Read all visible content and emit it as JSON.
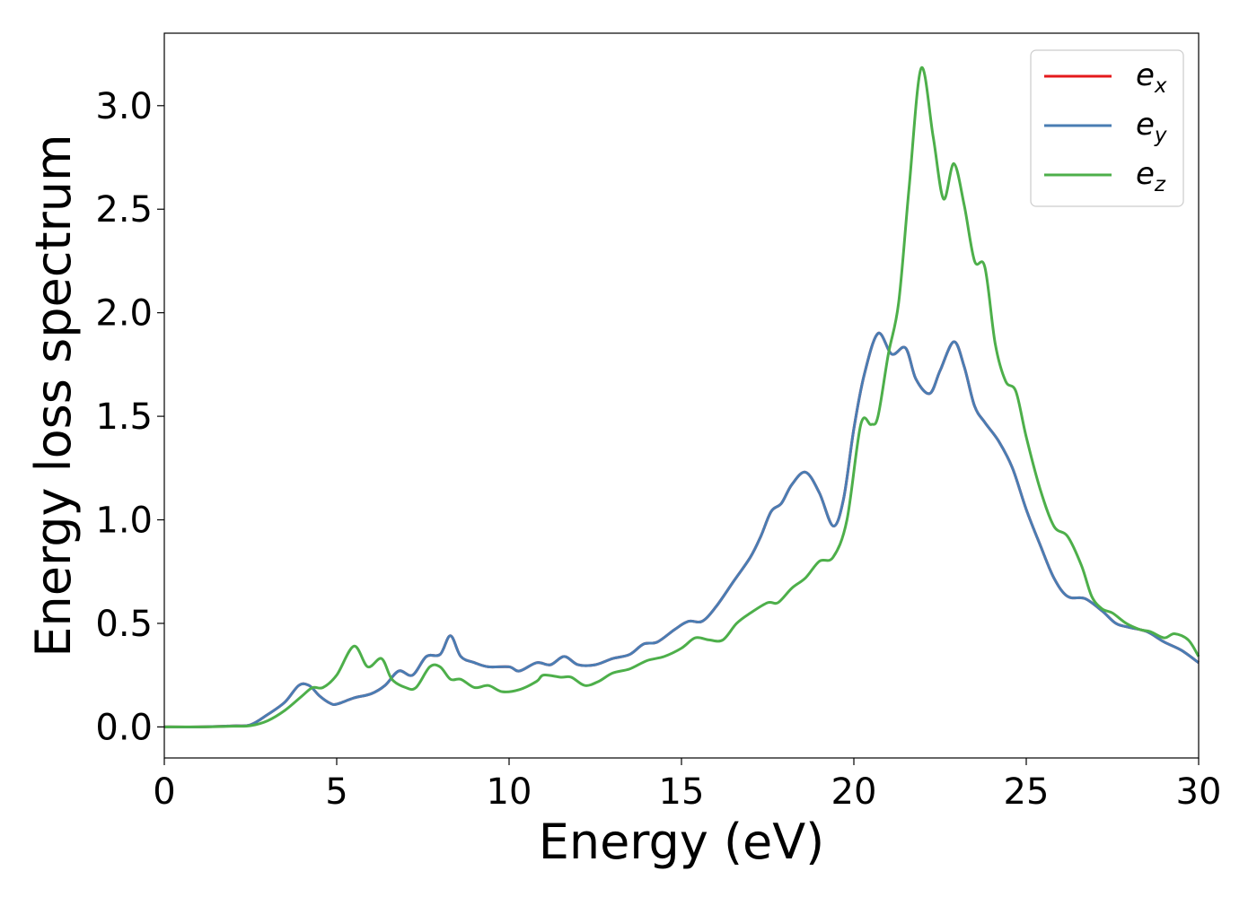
{
  "chart_data": {
    "type": "line",
    "xlabel": "Energy (eV)",
    "ylabel": "Energy loss spectrum",
    "xlim": [
      0,
      30
    ],
    "ylim": [
      -0.15,
      3.35
    ],
    "xticks": [
      "0",
      "5",
      "10",
      "15",
      "20",
      "25",
      "30"
    ],
    "yticks": [
      "0.0",
      "0.5",
      "1.0",
      "1.5",
      "2.0",
      "2.5",
      "3.0"
    ],
    "grid": false,
    "legend_position": "top-right",
    "series": [
      {
        "name": "e_x",
        "legend_base": "e",
        "legend_sub": "x",
        "color": "#e41a1c",
        "points": [
          [
            0,
            0
          ],
          [
            1,
            0
          ],
          [
            2,
            0.005
          ],
          [
            2.5,
            0.01
          ],
          [
            3,
            0.06
          ],
          [
            3.5,
            0.12
          ],
          [
            3.9,
            0.2
          ],
          [
            4.2,
            0.2
          ],
          [
            4.5,
            0.15
          ],
          [
            4.8,
            0.115
          ],
          [
            5,
            0.11
          ],
          [
            5.5,
            0.14
          ],
          [
            6,
            0.16
          ],
          [
            6.4,
            0.2
          ],
          [
            6.8,
            0.27
          ],
          [
            7.2,
            0.25
          ],
          [
            7.6,
            0.34
          ],
          [
            8,
            0.35
          ],
          [
            8.3,
            0.44
          ],
          [
            8.6,
            0.34
          ],
          [
            9,
            0.31
          ],
          [
            9.4,
            0.29
          ],
          [
            10,
            0.29
          ],
          [
            10.3,
            0.27
          ],
          [
            10.8,
            0.31
          ],
          [
            11.2,
            0.3
          ],
          [
            11.6,
            0.34
          ],
          [
            12,
            0.3
          ],
          [
            12.5,
            0.3
          ],
          [
            13,
            0.33
          ],
          [
            13.5,
            0.35
          ],
          [
            13.9,
            0.4
          ],
          [
            14.3,
            0.41
          ],
          [
            14.8,
            0.47
          ],
          [
            15.2,
            0.51
          ],
          [
            15.6,
            0.51
          ],
          [
            16,
            0.58
          ],
          [
            16.5,
            0.7
          ],
          [
            17,
            0.82
          ],
          [
            17.3,
            0.92
          ],
          [
            17.6,
            1.04
          ],
          [
            17.9,
            1.08
          ],
          [
            18.2,
            1.17
          ],
          [
            18.6,
            1.23
          ],
          [
            19,
            1.13
          ],
          [
            19.4,
            0.97
          ],
          [
            19.7,
            1.1
          ],
          [
            20,
            1.44
          ],
          [
            20.3,
            1.7
          ],
          [
            20.7,
            1.9
          ],
          [
            21.1,
            1.8
          ],
          [
            21.5,
            1.83
          ],
          [
            21.8,
            1.68
          ],
          [
            22.2,
            1.61
          ],
          [
            22.5,
            1.72
          ],
          [
            22.9,
            1.86
          ],
          [
            23.2,
            1.74
          ],
          [
            23.5,
            1.55
          ],
          [
            23.8,
            1.47
          ],
          [
            24.2,
            1.38
          ],
          [
            24.6,
            1.25
          ],
          [
            25,
            1.05
          ],
          [
            25.4,
            0.88
          ],
          [
            25.8,
            0.72
          ],
          [
            26.2,
            0.63
          ],
          [
            26.7,
            0.62
          ],
          [
            27.2,
            0.56
          ],
          [
            27.6,
            0.5
          ],
          [
            28,
            0.48
          ],
          [
            28.5,
            0.46
          ],
          [
            29,
            0.41
          ],
          [
            29.5,
            0.37
          ],
          [
            30,
            0.31
          ]
        ]
      },
      {
        "name": "e_y",
        "legend_base": "e",
        "legend_sub": "y",
        "color": "#4a7db3",
        "points": [
          [
            0,
            0
          ],
          [
            1,
            0
          ],
          [
            2,
            0.005
          ],
          [
            2.5,
            0.01
          ],
          [
            3,
            0.06
          ],
          [
            3.5,
            0.12
          ],
          [
            3.9,
            0.2
          ],
          [
            4.2,
            0.2
          ],
          [
            4.5,
            0.15
          ],
          [
            4.8,
            0.115
          ],
          [
            5,
            0.11
          ],
          [
            5.5,
            0.14
          ],
          [
            6,
            0.16
          ],
          [
            6.4,
            0.2
          ],
          [
            6.8,
            0.27
          ],
          [
            7.2,
            0.25
          ],
          [
            7.6,
            0.34
          ],
          [
            8,
            0.35
          ],
          [
            8.3,
            0.44
          ],
          [
            8.6,
            0.34
          ],
          [
            9,
            0.31
          ],
          [
            9.4,
            0.29
          ],
          [
            10,
            0.29
          ],
          [
            10.3,
            0.27
          ],
          [
            10.8,
            0.31
          ],
          [
            11.2,
            0.3
          ],
          [
            11.6,
            0.34
          ],
          [
            12,
            0.3
          ],
          [
            12.5,
            0.3
          ],
          [
            13,
            0.33
          ],
          [
            13.5,
            0.35
          ],
          [
            13.9,
            0.4
          ],
          [
            14.3,
            0.41
          ],
          [
            14.8,
            0.47
          ],
          [
            15.2,
            0.51
          ],
          [
            15.6,
            0.51
          ],
          [
            16,
            0.58
          ],
          [
            16.5,
            0.7
          ],
          [
            17,
            0.82
          ],
          [
            17.3,
            0.92
          ],
          [
            17.6,
            1.04
          ],
          [
            17.9,
            1.08
          ],
          [
            18.2,
            1.17
          ],
          [
            18.6,
            1.23
          ],
          [
            19,
            1.13
          ],
          [
            19.4,
            0.97
          ],
          [
            19.7,
            1.1
          ],
          [
            20,
            1.44
          ],
          [
            20.3,
            1.7
          ],
          [
            20.7,
            1.9
          ],
          [
            21.1,
            1.8
          ],
          [
            21.5,
            1.83
          ],
          [
            21.8,
            1.68
          ],
          [
            22.2,
            1.61
          ],
          [
            22.5,
            1.72
          ],
          [
            22.9,
            1.86
          ],
          [
            23.2,
            1.74
          ],
          [
            23.5,
            1.55
          ],
          [
            23.8,
            1.47
          ],
          [
            24.2,
            1.38
          ],
          [
            24.6,
            1.25
          ],
          [
            25,
            1.05
          ],
          [
            25.4,
            0.88
          ],
          [
            25.8,
            0.72
          ],
          [
            26.2,
            0.63
          ],
          [
            26.7,
            0.62
          ],
          [
            27.2,
            0.56
          ],
          [
            27.6,
            0.5
          ],
          [
            28,
            0.48
          ],
          [
            28.5,
            0.46
          ],
          [
            29,
            0.41
          ],
          [
            29.5,
            0.37
          ],
          [
            30,
            0.31
          ]
        ]
      },
      {
        "name": "e_z",
        "legend_base": "e",
        "legend_sub": "z",
        "color": "#4daf4a",
        "points": [
          [
            0,
            0
          ],
          [
            1,
            0
          ],
          [
            2,
            0.003
          ],
          [
            2.5,
            0.006
          ],
          [
            3,
            0.03
          ],
          [
            3.5,
            0.08
          ],
          [
            4,
            0.15
          ],
          [
            4.3,
            0.19
          ],
          [
            4.6,
            0.19
          ],
          [
            5,
            0.25
          ],
          [
            5.5,
            0.39
          ],
          [
            5.9,
            0.29
          ],
          [
            6.3,
            0.33
          ],
          [
            6.6,
            0.23
          ],
          [
            7,
            0.19
          ],
          [
            7.3,
            0.19
          ],
          [
            7.7,
            0.29
          ],
          [
            8,
            0.29
          ],
          [
            8.3,
            0.23
          ],
          [
            8.6,
            0.23
          ],
          [
            9,
            0.19
          ],
          [
            9.4,
            0.2
          ],
          [
            9.8,
            0.17
          ],
          [
            10.3,
            0.18
          ],
          [
            10.8,
            0.22
          ],
          [
            11,
            0.25
          ],
          [
            11.5,
            0.24
          ],
          [
            11.8,
            0.24
          ],
          [
            12.2,
            0.2
          ],
          [
            12.6,
            0.22
          ],
          [
            13,
            0.26
          ],
          [
            13.5,
            0.28
          ],
          [
            14,
            0.32
          ],
          [
            14.5,
            0.34
          ],
          [
            15,
            0.38
          ],
          [
            15.4,
            0.43
          ],
          [
            15.8,
            0.42
          ],
          [
            16.2,
            0.42
          ],
          [
            16.6,
            0.5
          ],
          [
            17,
            0.55
          ],
          [
            17.5,
            0.6
          ],
          [
            17.8,
            0.6
          ],
          [
            18.2,
            0.67
          ],
          [
            18.6,
            0.72
          ],
          [
            19,
            0.8
          ],
          [
            19.4,
            0.82
          ],
          [
            19.8,
            1.0
          ],
          [
            20.2,
            1.46
          ],
          [
            20.5,
            1.46
          ],
          [
            20.7,
            1.5
          ],
          [
            21,
            1.8
          ],
          [
            21.3,
            2.05
          ],
          [
            21.6,
            2.6
          ],
          [
            21.95,
            3.18
          ],
          [
            22.3,
            2.85
          ],
          [
            22.6,
            2.55
          ],
          [
            22.9,
            2.72
          ],
          [
            23.2,
            2.52
          ],
          [
            23.5,
            2.25
          ],
          [
            23.8,
            2.22
          ],
          [
            24.1,
            1.85
          ],
          [
            24.4,
            1.67
          ],
          [
            24.7,
            1.62
          ],
          [
            25,
            1.4
          ],
          [
            25.4,
            1.15
          ],
          [
            25.8,
            0.97
          ],
          [
            26.2,
            0.92
          ],
          [
            26.6,
            0.78
          ],
          [
            26.9,
            0.63
          ],
          [
            27.2,
            0.57
          ],
          [
            27.5,
            0.55
          ],
          [
            27.9,
            0.5
          ],
          [
            28.3,
            0.47
          ],
          [
            28.6,
            0.46
          ],
          [
            29,
            0.43
          ],
          [
            29.3,
            0.45
          ],
          [
            29.7,
            0.42
          ],
          [
            30,
            0.34
          ]
        ]
      }
    ]
  }
}
